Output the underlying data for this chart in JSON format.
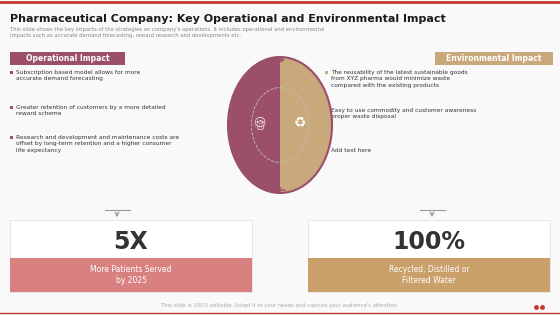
{
  "title": "Pharmaceutical Company: Key Operational and Environmental Impact",
  "subtitle": "This slide shows the key impacts of the strategies on company's operations. It includes operational and environmental\nimpacts such as accurate demand forecasting, reward research and developments etc.",
  "bg_color": "#f9f9f9",
  "top_border_color": "#c0392b",
  "title_color": "#1a1a1a",
  "subtitle_color": "#888888",
  "left_box_label": "Operational Impact",
  "left_box_bg": "#9b4f6b",
  "left_box_text_color": "#ffffff",
  "right_box_label": "Environmental Impact",
  "right_box_bg": "#c9a87c",
  "right_box_text_color": "#ffffff",
  "left_bullets": [
    "Subscription based model allows for more\naccurate demand forecasting",
    "Greater retention of customers by a more detailed\nreward scheme",
    "Research and development and maintenance costs are\noffset by long-term retention and a higher consumer\nlife expectancy"
  ],
  "right_bullets": [
    "The reusability of the latest sustainable goods\nfrom XYZ pharma would minimize waste\ncompared with the existing products",
    "Easy to use commodity and customer awareness\nproper waste disposal",
    "Add text here"
  ],
  "circle_left_color": "#9b4f6b",
  "circle_right_color": "#c9a87c",
  "circle_border_color": "#9b4f6b",
  "stat1_value": "5X",
  "stat1_label": "More Patients Served\nby 2025",
  "stat1_bg": "#f2cccc",
  "stat1_value_color": "#333333",
  "stat1_label_bg": "#d98080",
  "stat1_label_color": "#ffffff",
  "stat2_value": "100%",
  "stat2_label": "Recycled, Distilled or\nFiltered Water",
  "stat2_bg": "#f5e0c0",
  "stat2_value_color": "#333333",
  "stat2_label_bg": "#c9a06a",
  "stat2_label_color": "#ffffff",
  "footer_text": "This slide is 100% editable. Adapt it to your needs and capture your audience's attention.",
  "footer_color": "#aaaaaa"
}
